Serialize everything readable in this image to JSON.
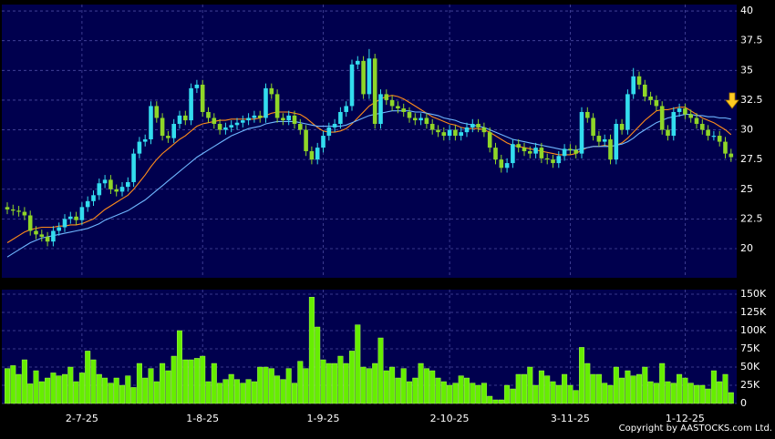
{
  "chart_data": [
    {
      "type": "candlestick",
      "ylim": [
        17.55,
        40.54
      ],
      "yticks": [
        20,
        22.5,
        25,
        27.5,
        30,
        32.5,
        35,
        37.5,
        40
      ],
      "grid": true,
      "up_color": "#33ddee",
      "down_color": "#8fd628",
      "open": [
        23.5,
        23.3,
        23.2,
        23.1,
        22.8,
        21.5,
        21.2,
        21.0,
        20.6,
        21.5,
        21.8,
        22.5,
        22.7,
        22.4,
        23.5,
        24.0,
        24.5,
        25.5,
        25.8,
        25.0,
        24.8,
        25.2,
        25.6,
        28.0,
        29.0,
        29.2,
        32.0,
        31.0,
        29.5,
        29.3,
        30.5,
        31.2,
        30.8,
        33.5,
        33.8,
        31.5,
        31.0,
        30.5,
        30.0,
        30.2,
        30.4,
        30.6,
        30.8,
        31.0,
        31.2,
        31.0,
        33.5,
        33.0,
        31.0,
        30.8,
        31.2,
        30.5,
        30.0,
        28.2,
        27.5,
        28.5,
        29.5,
        30.2,
        30.5,
        31.5,
        32.0,
        35.5,
        35.8,
        33.0,
        36.0,
        30.5,
        33.0,
        32.5,
        32.0,
        31.8,
        31.5,
        31.0,
        30.8,
        31.0,
        30.5,
        30.0,
        29.8,
        29.5,
        30.0,
        29.5,
        29.8,
        30.2,
        30.5,
        30.2,
        29.8,
        28.5,
        27.5,
        26.8,
        27.2,
        28.8,
        28.5,
        28.2,
        28.0,
        28.5,
        27.6,
        27.5,
        27.2,
        27.8,
        28.4,
        28.3,
        28.0,
        31.5,
        31.0,
        29.5,
        29.0,
        29.2,
        27.5,
        30.5,
        30.0,
        33.0,
        34.5,
        33.8,
        32.8,
        32.5,
        32.0,
        30.0,
        29.5,
        31.5,
        31.8,
        31.3,
        31.0,
        30.5,
        30.0,
        29.5,
        29.5,
        29.0,
        28.0
      ],
      "high": [
        23.9,
        23.7,
        23.6,
        23.5,
        23.2,
        21.9,
        21.6,
        21.4,
        21.9,
        22.2,
        22.9,
        23.1,
        23.1,
        23.9,
        24.4,
        24.9,
        25.9,
        26.2,
        26.2,
        25.4,
        25.6,
        26.0,
        28.4,
        29.4,
        29.6,
        32.4,
        32.4,
        31.4,
        29.9,
        30.9,
        31.6,
        31.6,
        33.9,
        34.2,
        34.2,
        31.9,
        31.4,
        30.9,
        30.6,
        30.8,
        31.0,
        31.2,
        31.4,
        31.6,
        31.6,
        33.9,
        33.9,
        33.4,
        31.4,
        31.6,
        31.6,
        30.9,
        30.4,
        28.6,
        28.9,
        29.9,
        30.6,
        30.9,
        31.9,
        32.4,
        35.9,
        36.2,
        36.2,
        36.8,
        36.4,
        33.4,
        33.4,
        32.9,
        32.4,
        32.2,
        31.9,
        31.4,
        31.4,
        31.4,
        30.9,
        30.4,
        30.2,
        30.4,
        30.4,
        30.2,
        30.6,
        30.9,
        30.9,
        30.6,
        30.2,
        28.9,
        27.9,
        27.6,
        29.2,
        29.2,
        28.9,
        28.6,
        28.9,
        28.9,
        28.0,
        27.9,
        28.2,
        28.8,
        28.8,
        28.7,
        31.9,
        31.9,
        31.4,
        29.9,
        29.6,
        29.6,
        30.9,
        30.9,
        33.4,
        35.2,
        34.9,
        34.2,
        33.2,
        32.9,
        32.4,
        30.4,
        31.9,
        32.2,
        32.2,
        31.7,
        31.4,
        30.9,
        30.4,
        29.9,
        29.9,
        29.4,
        28.4
      ],
      "low": [
        22.9,
        22.8,
        22.7,
        22.4,
        21.1,
        20.8,
        20.6,
        20.2,
        20.2,
        21.1,
        21.4,
        22.1,
        22.0,
        22.0,
        23.1,
        23.6,
        24.1,
        25.1,
        24.6,
        24.4,
        24.4,
        24.8,
        25.2,
        27.6,
        28.6,
        28.8,
        30.6,
        29.1,
        28.9,
        28.9,
        30.1,
        30.4,
        30.4,
        33.1,
        31.1,
        30.6,
        30.1,
        29.6,
        29.6,
        29.8,
        30.0,
        30.2,
        30.4,
        30.6,
        30.6,
        30.6,
        32.6,
        30.6,
        30.4,
        30.4,
        30.1,
        29.6,
        27.8,
        27.1,
        27.1,
        28.1,
        29.1,
        29.8,
        30.1,
        31.1,
        31.6,
        35.1,
        32.6,
        32.6,
        30.1,
        30.1,
        32.1,
        31.6,
        31.4,
        31.1,
        30.6,
        30.4,
        30.4,
        30.1,
        29.6,
        29.4,
        29.1,
        29.1,
        29.1,
        29.1,
        29.4,
        29.8,
        29.8,
        29.4,
        28.1,
        27.1,
        26.4,
        26.4,
        26.8,
        28.1,
        27.8,
        27.6,
        27.6,
        27.2,
        27.1,
        26.8,
        26.8,
        27.4,
        27.9,
        27.6,
        27.6,
        30.6,
        29.1,
        28.6,
        28.6,
        27.1,
        27.1,
        29.6,
        29.6,
        32.6,
        33.4,
        32.4,
        32.1,
        31.6,
        29.6,
        29.1,
        29.1,
        31.1,
        30.9,
        30.6,
        30.1,
        29.6,
        29.1,
        29.1,
        28.6,
        27.6,
        27.3
      ],
      "close": [
        23.3,
        23.2,
        23.1,
        22.8,
        21.5,
        21.2,
        21.0,
        20.6,
        21.5,
        21.8,
        22.5,
        22.7,
        22.4,
        23.5,
        24.0,
        24.5,
        25.5,
        25.8,
        25.0,
        24.8,
        25.2,
        25.6,
        28.0,
        29.0,
        29.2,
        32.0,
        31.0,
        29.5,
        29.3,
        30.5,
        31.2,
        30.8,
        33.5,
        33.8,
        31.5,
        31.0,
        30.5,
        30.0,
        30.2,
        30.4,
        30.6,
        30.8,
        31.0,
        31.2,
        31.0,
        33.5,
        33.0,
        31.0,
        30.8,
        31.2,
        30.5,
        30.0,
        28.2,
        27.5,
        28.5,
        29.5,
        30.2,
        30.5,
        31.5,
        32.0,
        35.5,
        35.8,
        33.0,
        36.0,
        30.5,
        33.0,
        32.5,
        32.0,
        31.8,
        31.5,
        31.0,
        30.8,
        31.0,
        30.5,
        30.0,
        29.8,
        29.5,
        30.0,
        29.5,
        29.8,
        30.2,
        30.5,
        30.2,
        29.8,
        28.5,
        27.5,
        26.8,
        27.2,
        28.8,
        28.5,
        28.2,
        28.0,
        28.5,
        27.6,
        27.5,
        27.2,
        27.8,
        28.4,
        28.3,
        28.0,
        31.5,
        31.0,
        29.5,
        29.0,
        29.2,
        27.5,
        30.5,
        30.0,
        33.0,
        34.5,
        33.8,
        32.8,
        32.5,
        32.0,
        30.0,
        29.5,
        31.5,
        31.8,
        31.3,
        31.0,
        30.5,
        30.0,
        29.5,
        29.5,
        29.0,
        28.0,
        27.7
      ],
      "lines": [
        {
          "color": "#ff8c1a",
          "values": [
            20.5,
            20.8,
            21.1,
            21.4,
            21.6,
            21.7,
            21.8,
            21.8,
            21.8,
            21.9,
            21.9,
            22.0,
            22.0,
            22.1,
            22.3,
            22.5,
            22.9,
            23.3,
            23.6,
            23.9,
            24.2,
            24.5,
            25.0,
            25.6,
            26.2,
            26.9,
            27.5,
            28.0,
            28.4,
            28.8,
            29.2,
            29.5,
            29.9,
            30.3,
            30.5,
            30.6,
            30.7,
            30.8,
            30.8,
            30.9,
            30.9,
            30.9,
            30.9,
            30.9,
            31.0,
            31.2,
            31.4,
            31.5,
            31.5,
            31.5,
            31.4,
            31.3,
            31.0,
            30.6,
            30.2,
            29.9,
            29.8,
            29.8,
            29.9,
            30.1,
            30.5,
            31.0,
            31.5,
            32.0,
            32.3,
            32.6,
            32.8,
            32.9,
            32.8,
            32.6,
            32.3,
            32.0,
            31.7,
            31.4,
            31.1,
            30.9,
            30.7,
            30.5,
            30.4,
            30.2,
            30.1,
            30.1,
            30.1,
            30.0,
            29.8,
            29.5,
            29.2,
            28.9,
            28.7,
            28.6,
            28.5,
            28.4,
            28.3,
            28.2,
            28.1,
            28.0,
            27.9,
            27.9,
            27.9,
            28.0,
            28.3,
            28.5,
            28.6,
            28.6,
            28.7,
            28.6,
            28.7,
            28.9,
            29.3,
            29.8,
            30.3,
            30.8,
            31.2,
            31.6,
            31.7,
            31.7,
            31.8,
            31.9,
            31.9,
            31.6,
            31.3,
            31.0,
            30.8,
            30.6,
            30.3,
            30.0,
            29.6
          ]
        },
        {
          "color": "#6fb7ff",
          "values": [
            19.3,
            19.6,
            19.9,
            20.2,
            20.5,
            20.7,
            20.9,
            21.0,
            21.1,
            21.2,
            21.3,
            21.4,
            21.5,
            21.6,
            21.7,
            21.9,
            22.1,
            22.4,
            22.6,
            22.8,
            23.0,
            23.2,
            23.5,
            23.8,
            24.1,
            24.5,
            24.9,
            25.3,
            25.7,
            26.1,
            26.5,
            26.9,
            27.3,
            27.7,
            28.0,
            28.3,
            28.6,
            28.9,
            29.2,
            29.5,
            29.7,
            29.9,
            30.1,
            30.2,
            30.3,
            30.5,
            30.6,
            30.7,
            30.7,
            30.7,
            30.7,
            30.6,
            30.5,
            30.4,
            30.3,
            30.3,
            30.3,
            30.3,
            30.3,
            30.4,
            30.6,
            30.8,
            31.0,
            31.2,
            31.3,
            31.4,
            31.5,
            31.6,
            31.6,
            31.6,
            31.6,
            31.5,
            31.5,
            31.4,
            31.3,
            31.2,
            31.0,
            30.9,
            30.8,
            30.6,
            30.5,
            30.4,
            30.3,
            30.2,
            30.0,
            29.8,
            29.6,
            29.4,
            29.2,
            29.1,
            29.0,
            28.9,
            28.8,
            28.7,
            28.6,
            28.5,
            28.4,
            28.3,
            28.3,
            28.3,
            28.4,
            28.5,
            28.6,
            28.6,
            28.6,
            28.6,
            28.7,
            28.8,
            29.0,
            29.3,
            29.7,
            30.0,
            30.3,
            30.6,
            30.8,
            31.0,
            31.1,
            31.2,
            31.3,
            31.3,
            31.2,
            31.2,
            31.1,
            31.1,
            31.0,
            31.0,
            30.9
          ]
        }
      ]
    },
    {
      "type": "bar",
      "ylim": [
        0,
        156250
      ],
      "yticks": [
        {
          "value": 0,
          "label": "0"
        },
        {
          "value": 25000,
          "label": "25K"
        },
        {
          "value": 50000,
          "label": "50K"
        },
        {
          "value": 75000,
          "label": "75K"
        },
        {
          "value": 100000,
          "label": "100K"
        },
        {
          "value": 125000,
          "label": "125K"
        },
        {
          "value": 150000,
          "label": "150K"
        }
      ],
      "grid": true,
      "color": "#66ee00",
      "categories": [
        null,
        null,
        null,
        null,
        null,
        null,
        null,
        null,
        null,
        null,
        null,
        null,
        null,
        "2-7-25",
        null,
        null,
        null,
        null,
        null,
        null,
        null,
        null,
        null,
        null,
        null,
        null,
        null,
        null,
        null,
        null,
        null,
        null,
        null,
        null,
        "1-8-25",
        null,
        null,
        null,
        null,
        null,
        null,
        null,
        null,
        null,
        null,
        null,
        null,
        null,
        null,
        null,
        null,
        null,
        null,
        null,
        null,
        "1-9-25",
        null,
        null,
        null,
        null,
        null,
        null,
        null,
        null,
        null,
        null,
        null,
        null,
        null,
        null,
        null,
        null,
        null,
        null,
        null,
        null,
        null,
        "2-10-25",
        null,
        null,
        null,
        null,
        null,
        null,
        null,
        null,
        null,
        null,
        null,
        null,
        null,
        null,
        null,
        null,
        null,
        null,
        null,
        null,
        "3-11-25",
        null,
        null,
        null,
        null,
        null,
        null,
        null,
        null,
        null,
        null,
        null,
        null,
        null,
        null,
        null,
        null,
        null,
        null,
        null,
        "1-12-25",
        null,
        null,
        null,
        null,
        null,
        null,
        null,
        null
      ],
      "values": [
        48000,
        52000,
        40000,
        60000,
        27000,
        45000,
        30000,
        35000,
        42000,
        38000,
        40000,
        50000,
        30000,
        42000,
        72000,
        60000,
        40000,
        35000,
        28000,
        35000,
        25000,
        38000,
        22000,
        55000,
        35000,
        48000,
        30000,
        55000,
        45000,
        65000,
        100000,
        60000,
        60000,
        62000,
        65000,
        30000,
        55000,
        28000,
        33000,
        40000,
        33000,
        28000,
        33000,
        30000,
        50000,
        50000,
        48000,
        38000,
        33000,
        48000,
        28000,
        58000,
        48000,
        146000,
        105000,
        60000,
        55000,
        55000,
        65000,
        55000,
        72000,
        108000,
        50000,
        48000,
        55000,
        90000,
        45000,
        50000,
        35000,
        48000,
        30000,
        35000,
        55000,
        48000,
        45000,
        35000,
        30000,
        25000,
        28000,
        38000,
        35000,
        28000,
        25000,
        28000,
        10000,
        5000,
        5000,
        25000,
        20000,
        40000,
        40000,
        50000,
        25000,
        45000,
        38000,
        30000,
        25000,
        40000,
        25000,
        18000,
        77000,
        55000,
        40000,
        40000,
        28000,
        25000,
        50000,
        35000,
        45000,
        38000,
        40000,
        50000,
        30000,
        28000,
        55000,
        30000,
        28000,
        40000,
        35000,
        28000,
        25000,
        25000,
        20000,
        45000,
        30000,
        40000,
        15000
      ],
      "annotation": "Copyright by AASTOCKS.com Ltd."
    }
  ]
}
